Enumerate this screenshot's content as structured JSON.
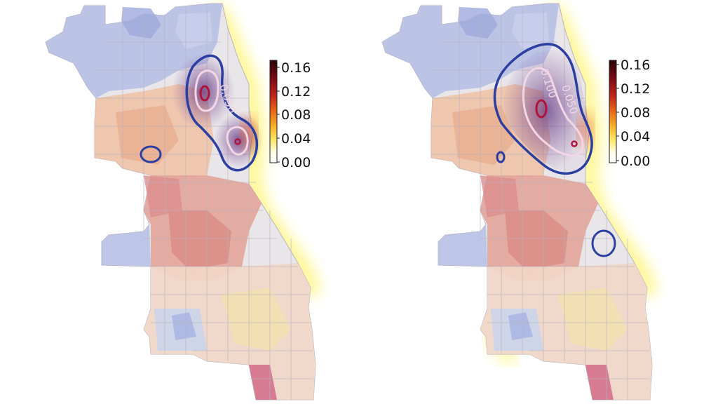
{
  "colorbar": {
    "ticks": [
      "0.16",
      "0.12",
      "0.08",
      "0.04",
      "0.00"
    ],
    "colors": [
      "#2a0008",
      "#7a0a14",
      "#c0271d",
      "#ea6a18",
      "#f6b32b",
      "#fbe96a",
      "#fffde6",
      "#ffffff"
    ]
  },
  "palette": {
    "low": "#aab6e3",
    "mid": "#f0c8b8",
    "high": "#d88a78",
    "contour_outer": "#2b3fa0",
    "contour_mid": "#f3d6e6",
    "contour_inner": "#b0143a",
    "glow": "#fff36a"
  },
  "maps": [
    {
      "contour_labels": [
        "0.050"
      ]
    },
    {
      "contour_labels": [
        "0.100",
        "0.050"
      ]
    }
  ]
}
